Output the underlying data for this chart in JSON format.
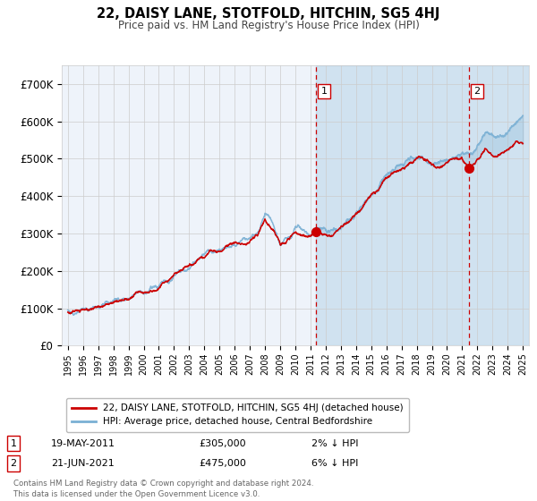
{
  "title": "22, DAISY LANE, STOTFOLD, HITCHIN, SG5 4HJ",
  "subtitle": "Price paid vs. HM Land Registry's House Price Index (HPI)",
  "legend_label_red": "22, DAISY LANE, STOTFOLD, HITCHIN, SG5 4HJ (detached house)",
  "legend_label_blue": "HPI: Average price, detached house, Central Bedfordshire",
  "annotation1_date": "19-MAY-2011",
  "annotation1_price": "£305,000",
  "annotation1_hpi": "2% ↓ HPI",
  "annotation2_date": "21-JUN-2021",
  "annotation2_price": "£475,000",
  "annotation2_hpi": "6% ↓ HPI",
  "footer": "Contains HM Land Registry data © Crown copyright and database right 2024.\nThis data is licensed under the Open Government Licence v3.0.",
  "ylim": [
    0,
    750000
  ],
  "yticks": [
    0,
    100000,
    200000,
    300000,
    400000,
    500000,
    600000,
    700000
  ],
  "ytick_labels": [
    "£0",
    "£100K",
    "£200K",
    "£300K",
    "£400K",
    "£500K",
    "£600K",
    "£700K"
  ],
  "color_red": "#cc0000",
  "color_blue": "#7ab0d4",
  "color_fill": "#ddeeff",
  "background_color": "#eef3fa",
  "grid_color": "#cccccc",
  "vline_color": "#cc0000",
  "vline1_x": 2011.38,
  "vline2_x": 2021.47,
  "dot1_x": 2011.38,
  "dot1_y": 305000,
  "dot2_x": 2021.47,
  "dot2_y": 475000,
  "start_year": 1995,
  "end_year": 2025,
  "xlim_left": 1994.6,
  "xlim_right": 2025.4
}
